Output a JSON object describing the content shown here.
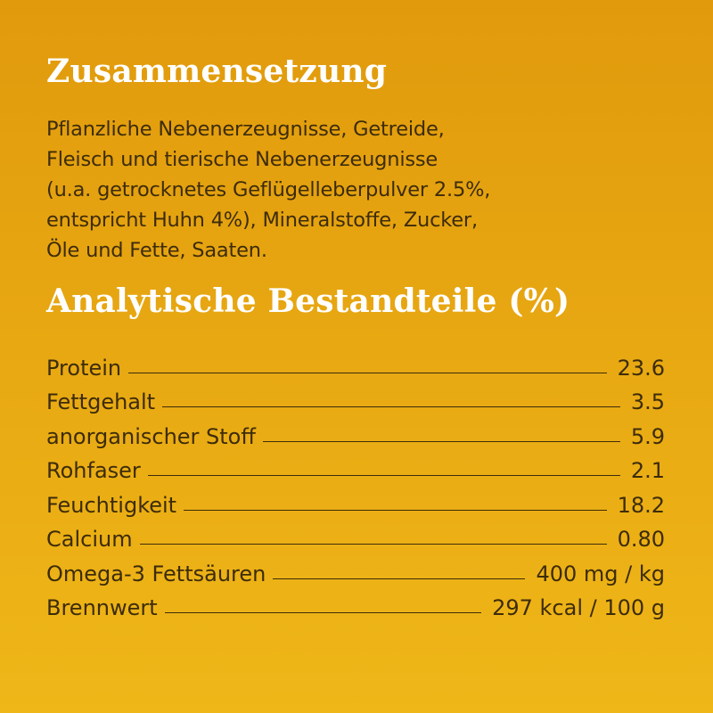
{
  "composition": {
    "title": "Zusammensetzung",
    "lines": [
      "Pflanzliche Nebenerzeugnisse, Getreide,",
      "Fleisch und tierische Nebenerzeugnisse",
      "(u.a. getrocknetes Geflügelleberpulver 2.5%,",
      "entspricht Huhn 4%), Mineralstoffe, Zucker,",
      "Öle und Fette, Saaten."
    ]
  },
  "analysis": {
    "title": "Analytische Bestandteile (%)",
    "rows": [
      {
        "label": "Protein",
        "value": "23.6"
      },
      {
        "label": "Fettgehalt",
        "value": "3.5"
      },
      {
        "label": "anorganischer Stoff",
        "value": "5.9"
      },
      {
        "label": "Rohfaser",
        "value": "2.1"
      },
      {
        "label": "Feuchtigkeit",
        "value": "18.2"
      },
      {
        "label": "Calcium",
        "value": "0.80"
      },
      {
        "label": "Omega-3 Fettsäuren",
        "value": "400 mg / kg"
      },
      {
        "label": "Brennwert",
        "value": "297 kcal / 100 g"
      }
    ]
  },
  "colors": {
    "background_top": "#e19a0c",
    "background_bottom": "#efb718",
    "heading": "#ffffff",
    "text": "#3d2c0a"
  }
}
